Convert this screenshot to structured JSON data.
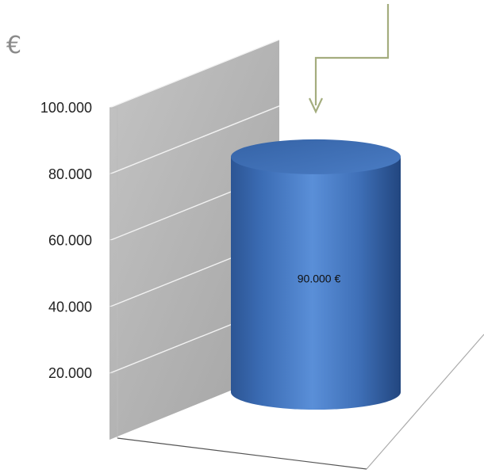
{
  "chart_data": {
    "type": "bar",
    "style": "3d-cylinder",
    "unit": "€",
    "categories": [
      ""
    ],
    "values": [
      90000
    ],
    "data_labels": [
      "90.000 €"
    ],
    "y_ticks": [
      "20.000",
      "40.000",
      "60.000",
      "80.000",
      "100.000"
    ],
    "ylim": [
      0,
      100000
    ],
    "grid": true,
    "colors": {
      "bar": "#4f82c9",
      "wall": "#b3b3b3",
      "arrow": "#a4ad7e"
    }
  }
}
